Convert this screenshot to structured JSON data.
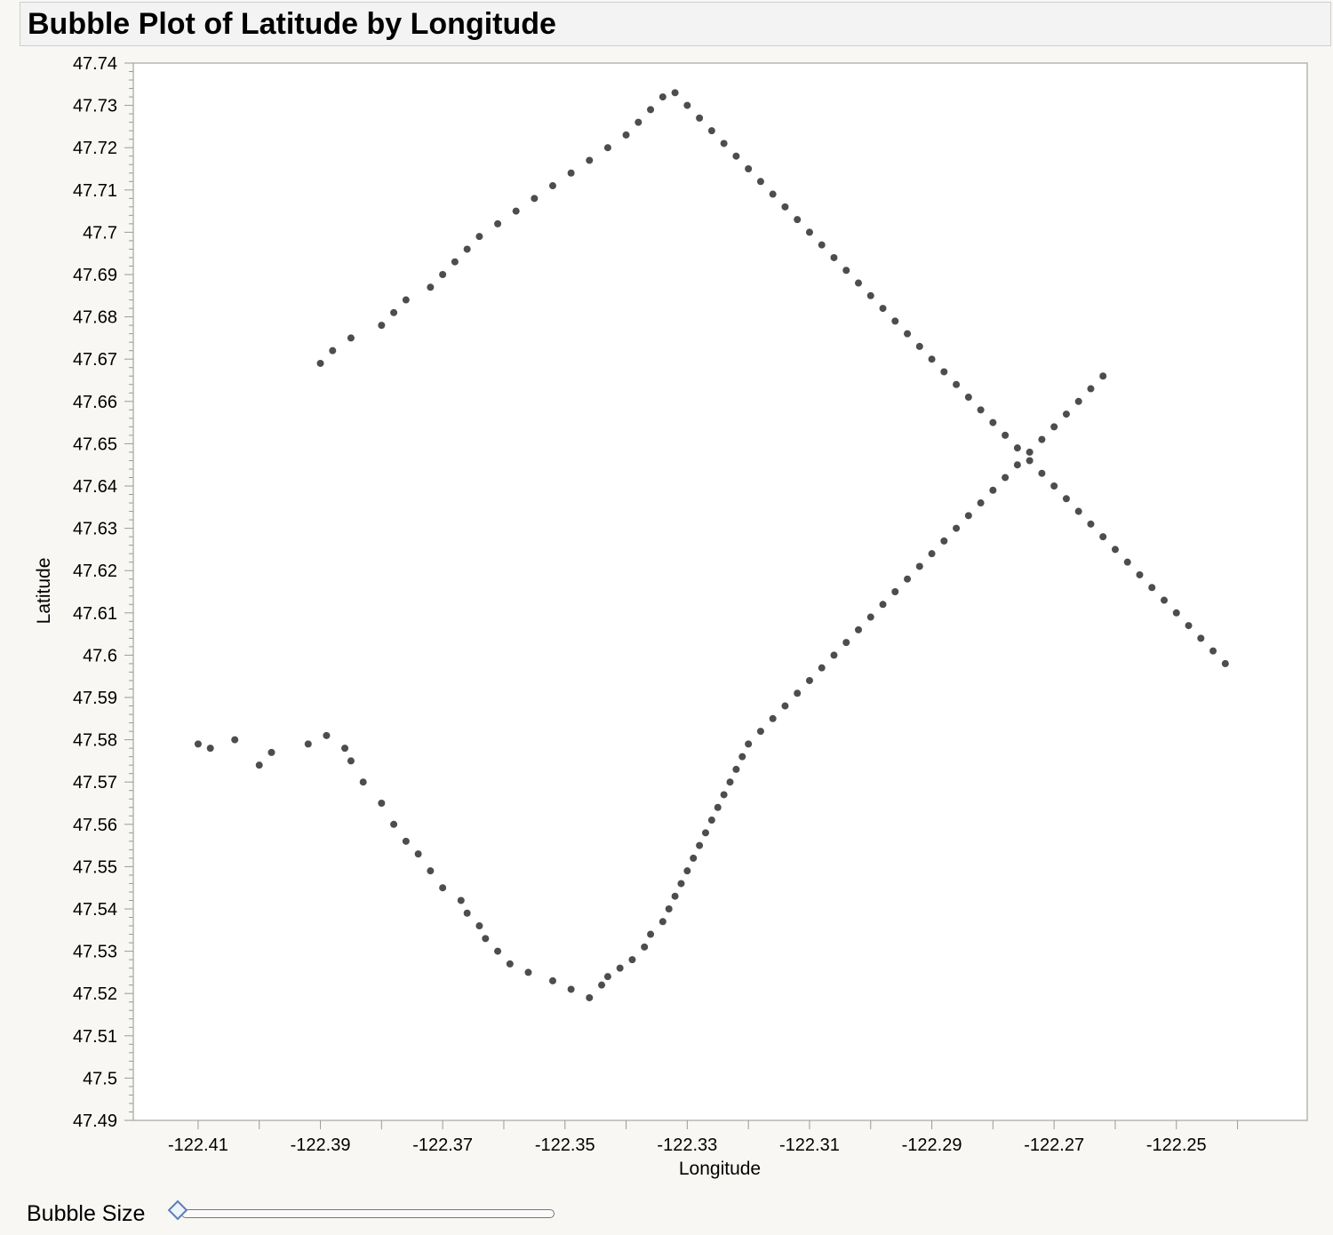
{
  "window": {
    "title": "Bubble Plot of Latitude by Longitude"
  },
  "controls": {
    "bubble_size_label": "Bubble Size",
    "bubble_size_value": 0.0
  },
  "colors": {
    "point": "#111111",
    "frame": "#b5b5b5",
    "tick": "#9a9a9a"
  },
  "chart_data": {
    "type": "scatter",
    "title": "Bubble Plot of Latitude by Longitude",
    "xlabel": "Longitude",
    "ylabel": "Latitude",
    "xlim": [
      -122.4206,
      -122.2286
    ],
    "ylim": [
      47.49,
      47.74
    ],
    "x_ticks": [
      -122.41,
      -122.39,
      -122.37,
      -122.35,
      -122.33,
      -122.31,
      -122.29,
      -122.27,
      -122.25
    ],
    "x_tick_labels": [
      "-122.41",
      "-122.39",
      "-122.37",
      "-122.35",
      "-122.33",
      "-122.31",
      "-122.29",
      "-122.27",
      "-122.25"
    ],
    "y_ticks": [
      47.49,
      47.5,
      47.51,
      47.52,
      47.53,
      47.54,
      47.55,
      47.56,
      47.57,
      47.58,
      47.59,
      47.6,
      47.61,
      47.62,
      47.63,
      47.64,
      47.65,
      47.66,
      47.67,
      47.68,
      47.69,
      47.7,
      47.71,
      47.72,
      47.73,
      47.74
    ],
    "y_tick_labels": [
      "47.49",
      "47.5",
      "47.51",
      "47.52",
      "47.53",
      "47.54",
      "47.55",
      "47.56",
      "47.57",
      "47.58",
      "47.59",
      "47.6",
      "47.61",
      "47.62",
      "47.63",
      "47.64",
      "47.65",
      "47.66",
      "47.67",
      "47.68",
      "47.69",
      "47.7",
      "47.71",
      "47.72",
      "47.73",
      "47.74"
    ],
    "grid": false,
    "legend": "none",
    "series": [
      {
        "x": [
          -122.41,
          -122.408,
          -122.404,
          -122.4,
          -122.398,
          -122.392,
          -122.389,
          -122.386,
          -122.385,
          -122.383,
          -122.38,
          -122.378,
          -122.376,
          -122.374,
          -122.372,
          -122.37,
          -122.367,
          -122.366,
          -122.364,
          -122.363,
          -122.361,
          -122.359,
          -122.356,
          -122.352,
          -122.349,
          -122.346,
          -122.344,
          -122.343,
          -122.341,
          -122.339,
          -122.337,
          -122.336,
          -122.334,
          -122.333,
          -122.332,
          -122.331,
          -122.33,
          -122.329,
          -122.328,
          -122.327,
          -122.326,
          -122.325,
          -122.324,
          -122.323,
          -122.322,
          -122.321,
          -122.32,
          -122.318,
          -122.316,
          -122.314,
          -122.312,
          -122.31,
          -122.308,
          -122.306,
          -122.304,
          -122.302,
          -122.3,
          -122.298,
          -122.296,
          -122.294,
          -122.292,
          -122.29,
          -122.288,
          -122.286,
          -122.284,
          -122.282,
          -122.28,
          -122.278,
          -122.276,
          -122.274,
          -122.272,
          -122.27,
          -122.268,
          -122.266,
          -122.264,
          -122.262,
          -122.39,
          -122.388,
          -122.385,
          -122.38,
          -122.378,
          -122.376,
          -122.372,
          -122.37,
          -122.368,
          -122.366,
          -122.364,
          -122.361,
          -122.358,
          -122.355,
          -122.352,
          -122.349,
          -122.346,
          -122.343,
          -122.34,
          -122.338,
          -122.336,
          -122.334,
          -122.332,
          -122.33,
          -122.328,
          -122.326,
          -122.324,
          -122.322,
          -122.32,
          -122.318,
          -122.316,
          -122.314,
          -122.312,
          -122.31,
          -122.308,
          -122.306,
          -122.304,
          -122.302,
          -122.3,
          -122.298,
          -122.296,
          -122.294,
          -122.292,
          -122.29,
          -122.288,
          -122.286,
          -122.284,
          -122.282,
          -122.28,
          -122.278,
          -122.276,
          -122.274,
          -122.272,
          -122.27,
          -122.268,
          -122.266,
          -122.264,
          -122.262,
          -122.26,
          -122.258,
          -122.256,
          -122.254,
          -122.252,
          -122.25,
          -122.248,
          -122.246,
          -122.244,
          -122.242
        ],
        "y": [
          47.579,
          47.578,
          47.58,
          47.574,
          47.577,
          47.579,
          47.581,
          47.578,
          47.575,
          47.57,
          47.565,
          47.56,
          47.556,
          47.553,
          47.549,
          47.545,
          47.542,
          47.539,
          47.536,
          47.533,
          47.53,
          47.527,
          47.525,
          47.523,
          47.521,
          47.519,
          47.522,
          47.524,
          47.526,
          47.528,
          47.531,
          47.534,
          47.537,
          47.54,
          47.543,
          47.546,
          47.549,
          47.552,
          47.555,
          47.558,
          47.561,
          47.564,
          47.567,
          47.57,
          47.573,
          47.576,
          47.579,
          47.582,
          47.585,
          47.588,
          47.591,
          47.594,
          47.597,
          47.6,
          47.603,
          47.606,
          47.609,
          47.612,
          47.615,
          47.618,
          47.621,
          47.624,
          47.627,
          47.63,
          47.633,
          47.636,
          47.639,
          47.642,
          47.645,
          47.648,
          47.651,
          47.654,
          47.657,
          47.66,
          47.663,
          47.666,
          47.669,
          47.672,
          47.675,
          47.678,
          47.681,
          47.684,
          47.687,
          47.69,
          47.693,
          47.696,
          47.699,
          47.702,
          47.705,
          47.708,
          47.711,
          47.714,
          47.717,
          47.72,
          47.723,
          47.726,
          47.729,
          47.732,
          47.733,
          47.73,
          47.727,
          47.724,
          47.721,
          47.718,
          47.715,
          47.712,
          47.709,
          47.706,
          47.703,
          47.7,
          47.697,
          47.694,
          47.691,
          47.688,
          47.685,
          47.682,
          47.679,
          47.676,
          47.673,
          47.67,
          47.667,
          47.664,
          47.661,
          47.658,
          47.655,
          47.652,
          47.649,
          47.646,
          47.643,
          47.64,
          47.637,
          47.634,
          47.631,
          47.628,
          47.625,
          47.622,
          47.619,
          47.616,
          47.613,
          47.61,
          47.607,
          47.604,
          47.601,
          47.598
        ]
      }
    ]
  }
}
